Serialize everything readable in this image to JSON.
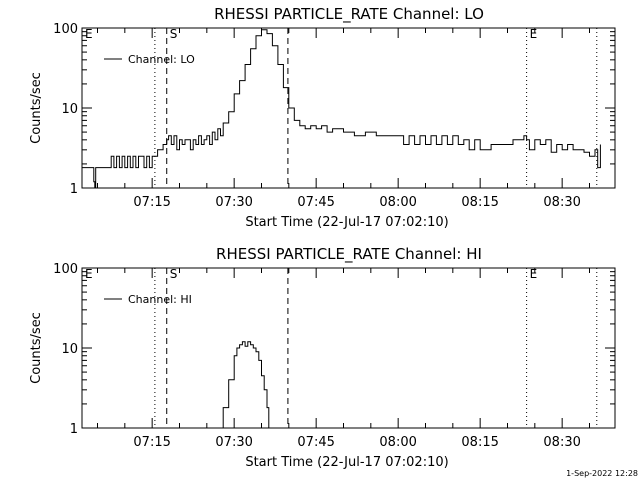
{
  "footer": {
    "timestamp": "1-Sep-2022 12:28"
  },
  "chart_data": [
    {
      "type": "line",
      "title": "RHESSI PARTICLE_RATE Channel: LO",
      "xlabel": "Start Time (22-Jul-17 07:02:10)",
      "ylabel": "Counts/sec",
      "y_scale": "log",
      "ylim": [
        1,
        100
      ],
      "xlim": [
        "07:02:10",
        "08:39:40"
      ],
      "x_ticks": [
        "07:15",
        "07:30",
        "07:45",
        "08:00",
        "08:15",
        "08:30"
      ],
      "y_ticks": [
        "1",
        "10",
        "100"
      ],
      "legend": {
        "position": "top-left",
        "label": "Channel: LO"
      },
      "markers": [
        {
          "label": "E",
          "time": "07:02:10",
          "style": "dotted"
        },
        {
          "label": "",
          "time": "07:15:30",
          "style": "dotted"
        },
        {
          "label": "S",
          "time": "07:17:40",
          "style": "dashed"
        },
        {
          "label": "",
          "time": "07:39:50",
          "style": "dashed"
        },
        {
          "label": "E",
          "time": "08:23:30",
          "style": "dotted"
        },
        {
          "label": "",
          "time": "08:36:20",
          "style": "dotted"
        }
      ],
      "series": [
        {
          "name": "Channel: LO",
          "x": [
            "07:02:10",
            "07:04:00",
            "07:04:20",
            "07:04:30",
            "07:04:40",
            "07:05:00",
            "07:07:00",
            "07:07:30",
            "07:08:00",
            "07:08:30",
            "07:09:00",
            "07:09:30",
            "07:10:00",
            "07:10:30",
            "07:11:00",
            "07:11:30",
            "07:12:00",
            "07:12:30",
            "07:13:00",
            "07:13:30",
            "07:14:00",
            "07:14:30",
            "07:15:00",
            "07:15:30",
            "07:16:00",
            "07:17:00",
            "07:17:40",
            "07:18:00",
            "07:18:30",
            "07:19:00",
            "07:19:30",
            "07:20:00",
            "07:20:30",
            "07:21:00",
            "07:22:00",
            "07:22:30",
            "07:23:00",
            "07:23:30",
            "07:24:00",
            "07:24:30",
            "07:25:00",
            "07:25:30",
            "07:26:00",
            "07:26:30",
            "07:27:00",
            "07:27:30",
            "07:28:00",
            "07:29:00",
            "07:30:00",
            "07:31:00",
            "07:32:00",
            "07:33:00",
            "07:34:00",
            "07:35:00",
            "07:36:00",
            "07:37:00",
            "07:38:00",
            "07:39:00",
            "07:40:00",
            "07:41:00",
            "07:42:00",
            "07:43:00",
            "07:44:00",
            "07:45:00",
            "07:46:00",
            "07:47:00",
            "07:48:00",
            "07:50:00",
            "07:52:00",
            "07:54:00",
            "07:56:00",
            "07:58:00",
            "07:59:30",
            "08:00:00",
            "08:01:00",
            "08:02:00",
            "08:03:00",
            "08:04:00",
            "08:05:00",
            "08:06:00",
            "08:07:00",
            "08:08:00",
            "08:09:00",
            "08:10:00",
            "08:11:00",
            "08:12:00",
            "08:13:00",
            "08:14:00",
            "08:15:00",
            "08:17:00",
            "08:19:00",
            "08:21:00",
            "08:23:00",
            "08:23:30",
            "08:24:00",
            "08:25:00",
            "08:26:00",
            "08:27:00",
            "08:28:00",
            "08:29:00",
            "08:30:00",
            "08:31:00",
            "08:32:00",
            "08:33:00",
            "08:34:00",
            "08:35:00",
            "08:36:00",
            "08:36:30",
            "08:37:00"
          ],
          "values": [
            1.8,
            1.8,
            1.2,
            0.9,
            1.8,
            1.8,
            1.8,
            2.5,
            1.8,
            2.5,
            1.8,
            2.5,
            1.8,
            2.5,
            1.8,
            2.5,
            1.8,
            2.5,
            2.5,
            1.8,
            2.5,
            1.8,
            2.5,
            2.5,
            3.0,
            3.5,
            4.0,
            4.5,
            3.5,
            4.5,
            3.0,
            4.0,
            3.5,
            4.0,
            3.0,
            4.0,
            3.5,
            4.5,
            3.5,
            4.0,
            4.5,
            3.5,
            5.0,
            4.0,
            5.5,
            4.5,
            6.5,
            9,
            15,
            22,
            35,
            55,
            80,
            95,
            85,
            60,
            35,
            18,
            10,
            7,
            6,
            5.5,
            6,
            5.5,
            6,
            5,
            5.5,
            5,
            4.5,
            5,
            4.5,
            4.5,
            4.5,
            4.5,
            3.5,
            4.5,
            3.5,
            4.5,
            3.5,
            4.5,
            3.5,
            4.5,
            3.5,
            4.5,
            3.5,
            4.0,
            3.0,
            4.0,
            3.0,
            3.5,
            3.5,
            4.0,
            4.5,
            4.0,
            3.0,
            4.0,
            3.5,
            4.0,
            2.8,
            3.5,
            3.0,
            3.5,
            3.0,
            3.0,
            2.8,
            2.5,
            3.0,
            1.8,
            3.5
          ]
        }
      ]
    },
    {
      "type": "line",
      "title": "RHESSI PARTICLE_RATE Channel: HI",
      "xlabel": "Start Time (22-Jul-17 07:02:10)",
      "ylabel": "Counts/sec",
      "y_scale": "log",
      "ylim": [
        1,
        100
      ],
      "xlim": [
        "07:02:10",
        "08:39:40"
      ],
      "x_ticks": [
        "07:15",
        "07:30",
        "07:45",
        "08:00",
        "08:15",
        "08:30"
      ],
      "y_ticks": [
        "1",
        "10",
        "100"
      ],
      "legend": {
        "position": "top-left",
        "label": "Channel: HI"
      },
      "markers": [
        {
          "label": "E",
          "time": "07:02:10",
          "style": "dotted"
        },
        {
          "label": "",
          "time": "07:15:30",
          "style": "dotted"
        },
        {
          "label": "S",
          "time": "07:17:40",
          "style": "dashed"
        },
        {
          "label": "",
          "time": "07:39:50",
          "style": "dashed"
        },
        {
          "label": "E",
          "time": "08:23:30",
          "style": "dotted"
        },
        {
          "label": "",
          "time": "08:36:20",
          "style": "dotted"
        }
      ],
      "series": [
        {
          "name": "Channel: HI",
          "x": [
            "07:27:40",
            "07:28:00",
            "07:29:00",
            "07:30:00",
            "07:30:30",
            "07:31:00",
            "07:31:30",
            "07:32:00",
            "07:32:30",
            "07:33:00",
            "07:33:30",
            "07:34:00",
            "07:34:30",
            "07:35:00",
            "07:35:30",
            "07:36:00",
            "07:36:20"
          ],
          "values": [
            1.0,
            1.8,
            4,
            8,
            10,
            11,
            12,
            10.5,
            12,
            11,
            10,
            9,
            7,
            4.5,
            3,
            1.8,
            1.0
          ]
        }
      ]
    }
  ]
}
